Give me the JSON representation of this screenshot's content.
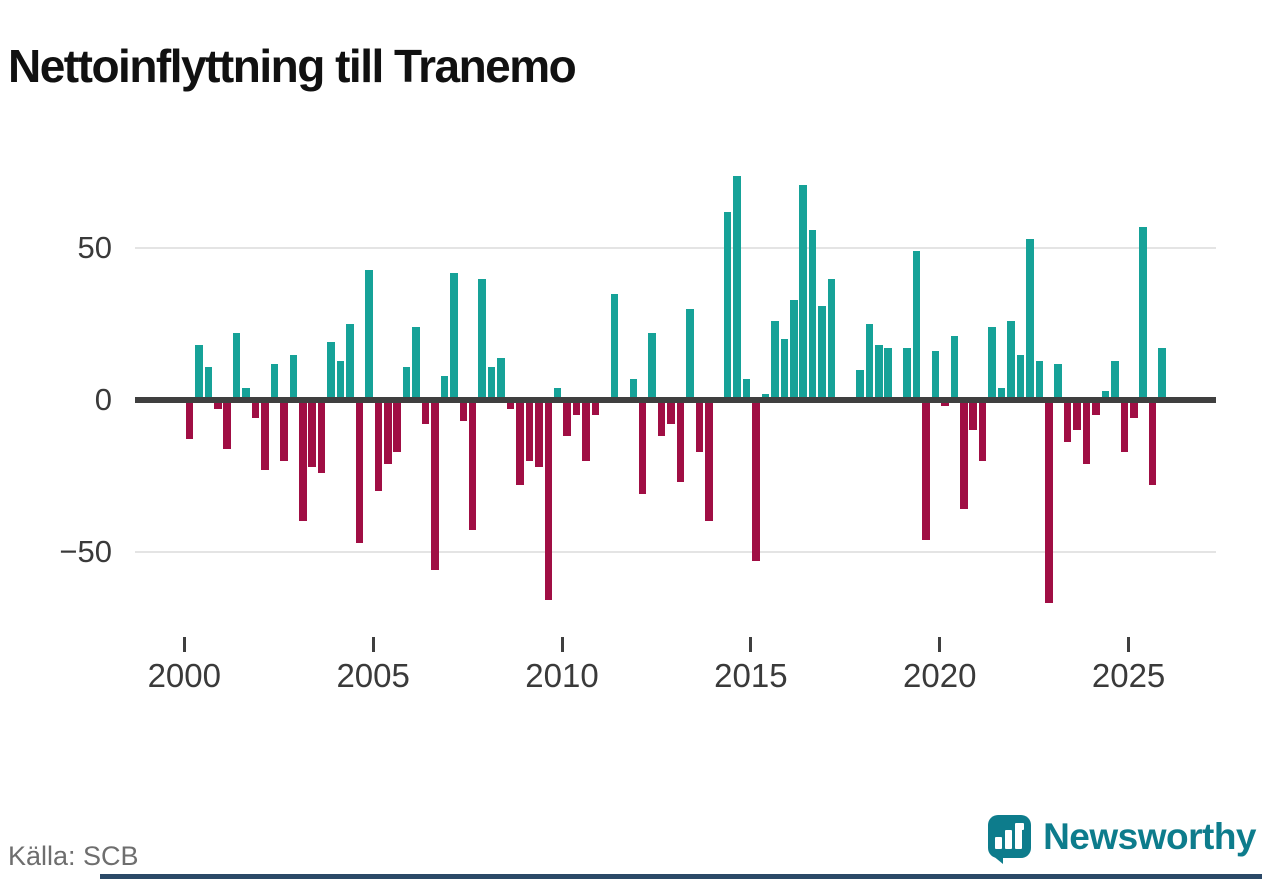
{
  "title": "Nettoinflyttning till Tranemo",
  "source": "Källa: SCB",
  "branding": {
    "name": "Newsworthy",
    "color": "#0d7c8c",
    "icon": "newsworthy-bar-chart-bubble-icon"
  },
  "colors": {
    "positive": "#16a298",
    "negative": "#a00e44",
    "axis": "#3f3f3f",
    "gridline": "#e4e4e4",
    "footer_strip": "#2b4967"
  },
  "chart_data": {
    "type": "bar",
    "title": "Nettoinflyttning till Tranemo",
    "xlabel": "",
    "ylabel": "",
    "freq": "quarterly",
    "start_year": 2000,
    "start_quarter": 1,
    "values": [
      -13,
      18,
      11,
      -3,
      -16,
      22,
      4,
      -6,
      -23,
      12,
      -20,
      15,
      -40,
      -22,
      -24,
      19,
      13,
      25,
      -47,
      43,
      -30,
      -21,
      -17,
      11,
      24,
      -8,
      -56,
      8,
      42,
      -7,
      -43,
      40,
      11,
      14,
      -3,
      -28,
      -20,
      -22,
      -66,
      4,
      -12,
      -5,
      -20,
      -5,
      0,
      35,
      0,
      7,
      -31,
      22,
      -12,
      -8,
      -27,
      30,
      -17,
      -40,
      1,
      62,
      74,
      7,
      -53,
      2,
      26,
      20,
      33,
      71,
      56,
      31,
      40,
      0,
      -1,
      10,
      25,
      18,
      17,
      1,
      17,
      49,
      -46,
      16,
      -2,
      21,
      -36,
      -10,
      -20,
      24,
      4,
      26,
      15,
      53,
      13,
      -67,
      12,
      -14,
      -10,
      -21,
      -5,
      3,
      13,
      -17,
      -6,
      57,
      -28,
      17
    ],
    "ylim": [
      -70,
      80
    ],
    "grid": "horizontal",
    "legend": "none",
    "yticks": [
      {
        "v": 50,
        "label": "50"
      },
      {
        "v": 0,
        "label": "0"
      },
      {
        "v": -50,
        "label": "−50"
      }
    ],
    "xticks": [
      {
        "v": 2000,
        "label": "2000"
      },
      {
        "v": 2005,
        "label": "2005"
      },
      {
        "v": 2010,
        "label": "2010"
      },
      {
        "v": 2015,
        "label": "2015"
      },
      {
        "v": 2020,
        "label": "2020"
      },
      {
        "v": 2025,
        "label": "2025"
      }
    ]
  }
}
